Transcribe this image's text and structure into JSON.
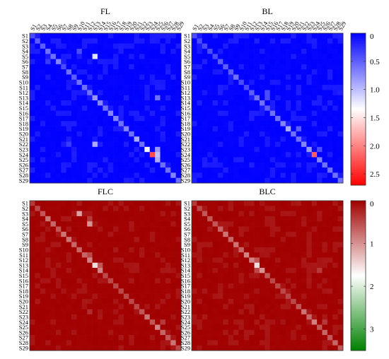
{
  "chart_data": [
    {
      "type": "heatmap",
      "title": "FL",
      "rows": [
        "S1",
        "S2",
        "S3",
        "S4",
        "S5",
        "S6",
        "S7",
        "S8",
        "S9",
        "S10",
        "S11",
        "S12",
        "S13",
        "S14",
        "S15",
        "S16",
        "S17",
        "S18",
        "S19",
        "S20",
        "S21",
        "S22",
        "S23",
        "S24",
        "S25",
        "S26",
        "S27",
        "S28",
        "S29"
      ],
      "cols": [
        "S1",
        "S2",
        "S3",
        "S4",
        "S5",
        "S6",
        "S7",
        "S8",
        "S9",
        "S10",
        "S11",
        "S12",
        "S13",
        "S14",
        "S15",
        "S16",
        "S17",
        "S18",
        "S19",
        "S20",
        "S21",
        "S22",
        "S23",
        "S24",
        "S25",
        "S26",
        "S27",
        "S28",
        "S29"
      ],
      "diagonal": [
        0.4,
        0.5,
        0.5,
        0.6,
        0.6,
        0.7,
        0.4,
        0.6,
        0.5,
        0.6,
        0.6,
        0.6,
        0.8,
        0.7,
        0.6,
        0.7,
        0.7,
        0.6,
        0.7,
        0.6,
        0.9,
        0.6,
        1.3,
        2.3,
        0.9,
        0.6,
        0.6,
        0.7,
        0.6
      ],
      "off_diagonal_highlights": [
        {
          "row": "S5",
          "col": "S13",
          "value": 1.2
        },
        {
          "row": "S4",
          "col": "S10",
          "value": 0.4
        },
        {
          "row": "S13",
          "col": "S25",
          "value": 0.6
        },
        {
          "row": "S22",
          "col": "S13",
          "value": 0.9
        },
        {
          "row": "S22",
          "col": "S8",
          "value": 0.3
        },
        {
          "row": "S6",
          "col": "S4",
          "value": 0.3
        },
        {
          "row": "S23",
          "col": "S25",
          "value": 0.8
        },
        {
          "row": "S24",
          "col": "S25",
          "value": 1.0
        }
      ],
      "background_value": 0.05,
      "colorbar": {
        "ticks": [
          0,
          0.5,
          1.0,
          1.5,
          2.0,
          2.5
        ],
        "range": [
          0,
          2.7
        ],
        "colors": [
          "#0000ff",
          "#ffffff",
          "#ff0000"
        ]
      }
    },
    {
      "type": "heatmap",
      "title": "BL",
      "rows": [
        "S1",
        "S2",
        "S3",
        "S4",
        "S5",
        "S6",
        "S7",
        "S8",
        "S9",
        "S10",
        "S11",
        "S12",
        "S13",
        "S14",
        "S15",
        "S16",
        "S17",
        "S18",
        "S19",
        "S20",
        "S21",
        "S22",
        "S23",
        "S24",
        "S25",
        "S26",
        "S27",
        "S28",
        "S29"
      ],
      "cols": [
        "S1",
        "S2",
        "S3",
        "S4",
        "S5",
        "S6",
        "S7",
        "S8",
        "S9",
        "S10",
        "S11",
        "S12",
        "S13",
        "S14",
        "S15",
        "S16",
        "S17",
        "S18",
        "S19",
        "S20",
        "S21",
        "S22",
        "S23",
        "S24",
        "S25",
        "S26",
        "S27",
        "S28",
        "S29"
      ],
      "diagonal": [
        0.4,
        0.4,
        0.4,
        0.4,
        0.4,
        0.5,
        0.5,
        0.5,
        0.6,
        0.4,
        0.4,
        0.5,
        0.6,
        0.6,
        0.5,
        0.6,
        0.6,
        0.7,
        0.9,
        0.6,
        0.6,
        0.7,
        0.8,
        2.2,
        0.7,
        0.6,
        0.6,
        0.6,
        0.6
      ],
      "off_diagonal_highlights": [
        {
          "row": "S12",
          "col": "S15",
          "value": 0.4
        },
        {
          "row": "S19",
          "col": "S21",
          "value": 0.5
        },
        {
          "row": "S13",
          "col": "S15",
          "value": 0.4
        },
        {
          "row": "S23",
          "col": "S25",
          "value": 0.4
        }
      ],
      "background_value": 0.05,
      "colorbar": {
        "ticks": [
          0,
          0.5,
          1.0,
          1.5,
          2.0,
          2.5
        ],
        "range": [
          0,
          2.7
        ],
        "colors": [
          "#0000ff",
          "#ffffff",
          "#ff0000"
        ]
      }
    },
    {
      "type": "heatmap",
      "title": "FLC",
      "rows": [
        "S1",
        "S2",
        "S3",
        "S4",
        "S5",
        "S6",
        "S7",
        "S8",
        "S9",
        "S10",
        "S11",
        "S12",
        "S13",
        "S14",
        "S15",
        "S16",
        "S17",
        "S18",
        "S19",
        "S20",
        "S21",
        "S22",
        "S23",
        "S24",
        "S25",
        "S26",
        "S27",
        "S28",
        "S29"
      ],
      "cols": [
        "S1",
        "S2",
        "S3",
        "S4",
        "S5",
        "S6",
        "S7",
        "S8",
        "S9",
        "S10",
        "S11",
        "S12",
        "S13",
        "S14",
        "S15",
        "S16",
        "S17",
        "S18",
        "S19",
        "S20",
        "S21",
        "S22",
        "S23",
        "S24",
        "S25",
        "S26",
        "S27",
        "S28",
        "S29"
      ],
      "diagonal": [
        0.4,
        0.5,
        0.6,
        0.8,
        0.7,
        0.6,
        0.8,
        0.8,
        0.7,
        0.7,
        0.7,
        0.9,
        1.5,
        0.9,
        0.5,
        0.5,
        0.5,
        0.5,
        0.5,
        0.5,
        0.5,
        0.6,
        0.8,
        0.6,
        0.9,
        0.7,
        0.6,
        0.8,
        0.5
      ],
      "off_diagonal_highlights": [
        {
          "row": "S3",
          "col": "S10",
          "value": 1.1
        },
        {
          "row": "S5",
          "col": "S12",
          "value": 1.0
        },
        {
          "row": "S4",
          "col": "S12",
          "value": 0.4
        },
        {
          "row": "S13",
          "col": "S14",
          "value": 0.6
        },
        {
          "row": "S11",
          "col": "S12",
          "value": 0.5
        },
        {
          "row": "S22",
          "col": "S12",
          "value": 0.3
        },
        {
          "row": "S24",
          "col": "S26",
          "value": 0.4
        }
      ],
      "background_value": 0.05,
      "colorbar": {
        "ticks": [
          0,
          1,
          2,
          3
        ],
        "range": [
          0,
          3.5
        ],
        "colors": [
          "#a10000",
          "#ffffff",
          "#008000"
        ]
      }
    },
    {
      "type": "heatmap",
      "title": "BLC",
      "rows": [
        "S1",
        "S2",
        "S3",
        "S4",
        "S5",
        "S6",
        "S7",
        "S8",
        "S9",
        "S10",
        "S11",
        "S12",
        "S13",
        "S14",
        "S15",
        "S16",
        "S17",
        "S18",
        "S19",
        "S20",
        "S21",
        "S22",
        "S23",
        "S24",
        "S25",
        "S26",
        "S27",
        "S28",
        "S29"
      ],
      "cols": [
        "S1",
        "S2",
        "S3",
        "S4",
        "S5",
        "S6",
        "S7",
        "S8",
        "S9",
        "S10",
        "S11",
        "S12",
        "S13",
        "S14",
        "S15",
        "S16",
        "S17",
        "S18",
        "S19",
        "S20",
        "S21",
        "S22",
        "S23",
        "S24",
        "S25",
        "S26",
        "S27",
        "S28",
        "S29"
      ],
      "diagonal": [
        0.4,
        0.5,
        0.6,
        0.6,
        0.6,
        0.7,
        0.8,
        0.7,
        0.8,
        0.7,
        0.9,
        0.9,
        1.5,
        1.0,
        0.6,
        0.5,
        0.5,
        0.5,
        0.5,
        0.5,
        0.6,
        0.8,
        0.7,
        0.9,
        0.6,
        0.7,
        0.6,
        0.7,
        0.6
      ],
      "off_diagonal_highlights": [
        {
          "row": "S12",
          "col": "S13",
          "value": 0.6
        },
        {
          "row": "S14",
          "col": "S13",
          "value": 0.5
        },
        {
          "row": "S14",
          "col": "S25",
          "value": 0.4
        },
        {
          "row": "S24",
          "col": "S26",
          "value": 0.4
        }
      ],
      "background_value": 0.05,
      "colorbar": {
        "ticks": [
          0,
          1,
          2,
          3
        ],
        "range": [
          0,
          3.5
        ],
        "colors": [
          "#a10000",
          "#ffffff",
          "#008000"
        ]
      }
    }
  ]
}
